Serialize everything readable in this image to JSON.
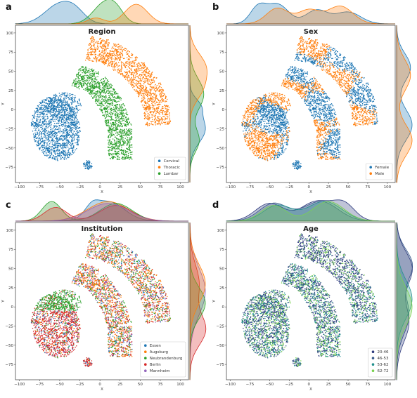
{
  "chart_data": [
    {
      "letter": "a",
      "type": "scatter",
      "title": "Region",
      "xlabel": "X",
      "ylabel": "Y",
      "xlim": [
        -105,
        110
      ],
      "ylim": [
        -95,
        110
      ],
      "xticks": [
        -100,
        -75,
        -50,
        -25,
        0,
        25,
        50,
        75,
        100
      ],
      "yticks": [
        100,
        75,
        50,
        25,
        0,
        -25,
        -50,
        -75
      ],
      "legend_position": "bottom-right",
      "series": [
        {
          "name": "Cervical",
          "color": "#1f77b4"
        },
        {
          "name": "Thoracic",
          "color": "#ff7f0e"
        },
        {
          "name": "Lumbar",
          "color": "#2ca02c"
        }
      ]
    },
    {
      "letter": "b",
      "type": "scatter",
      "title": "Sex",
      "xlabel": "X",
      "ylabel": "Y",
      "xlim": [
        -105,
        110
      ],
      "ylim": [
        -95,
        110
      ],
      "xticks": [
        -100,
        -75,
        -50,
        -25,
        0,
        25,
        50,
        75,
        100
      ],
      "yticks": [
        100,
        75,
        50,
        25,
        0,
        -25,
        -50,
        -75
      ],
      "legend_position": "bottom-right",
      "series": [
        {
          "name": "Female",
          "color": "#1f77b4"
        },
        {
          "name": "Male",
          "color": "#ff7f0e"
        }
      ]
    },
    {
      "letter": "c",
      "type": "scatter",
      "title": "Institution",
      "xlabel": "X",
      "ylabel": "Y",
      "xlim": [
        -105,
        110
      ],
      "ylim": [
        -95,
        110
      ],
      "xticks": [
        -100,
        -75,
        -50,
        -25,
        0,
        25,
        50,
        75,
        100
      ],
      "yticks": [
        100,
        75,
        50,
        25,
        0,
        -25,
        -50,
        -75
      ],
      "legend_position": "bottom-right",
      "series": [
        {
          "name": "Essen",
          "color": "#1f77b4"
        },
        {
          "name": "Augsburg",
          "color": "#ff7f0e"
        },
        {
          "name": "Neubrandenburg",
          "color": "#2ca02c"
        },
        {
          "name": "Berlin",
          "color": "#d62728"
        },
        {
          "name": "Mannheim",
          "color": "#9467bd"
        }
      ]
    },
    {
      "letter": "d",
      "type": "scatter",
      "title": "Age",
      "xlabel": "X",
      "ylabel": "Y",
      "xlim": [
        -105,
        110
      ],
      "ylim": [
        -95,
        110
      ],
      "xticks": [
        -100,
        -75,
        -50,
        -25,
        0,
        25,
        50,
        75,
        100
      ],
      "yticks": [
        100,
        75,
        50,
        25,
        0,
        -25,
        -50,
        -75
      ],
      "legend_position": "bottom-right",
      "series": [
        {
          "name": "20-46",
          "color": "#2f3c7e"
        },
        {
          "name": "46-53",
          "color": "#3a5c8c"
        },
        {
          "name": "53-62",
          "color": "#21908d"
        },
        {
          "name": "62-72",
          "color": "#7ad151"
        }
      ]
    }
  ]
}
